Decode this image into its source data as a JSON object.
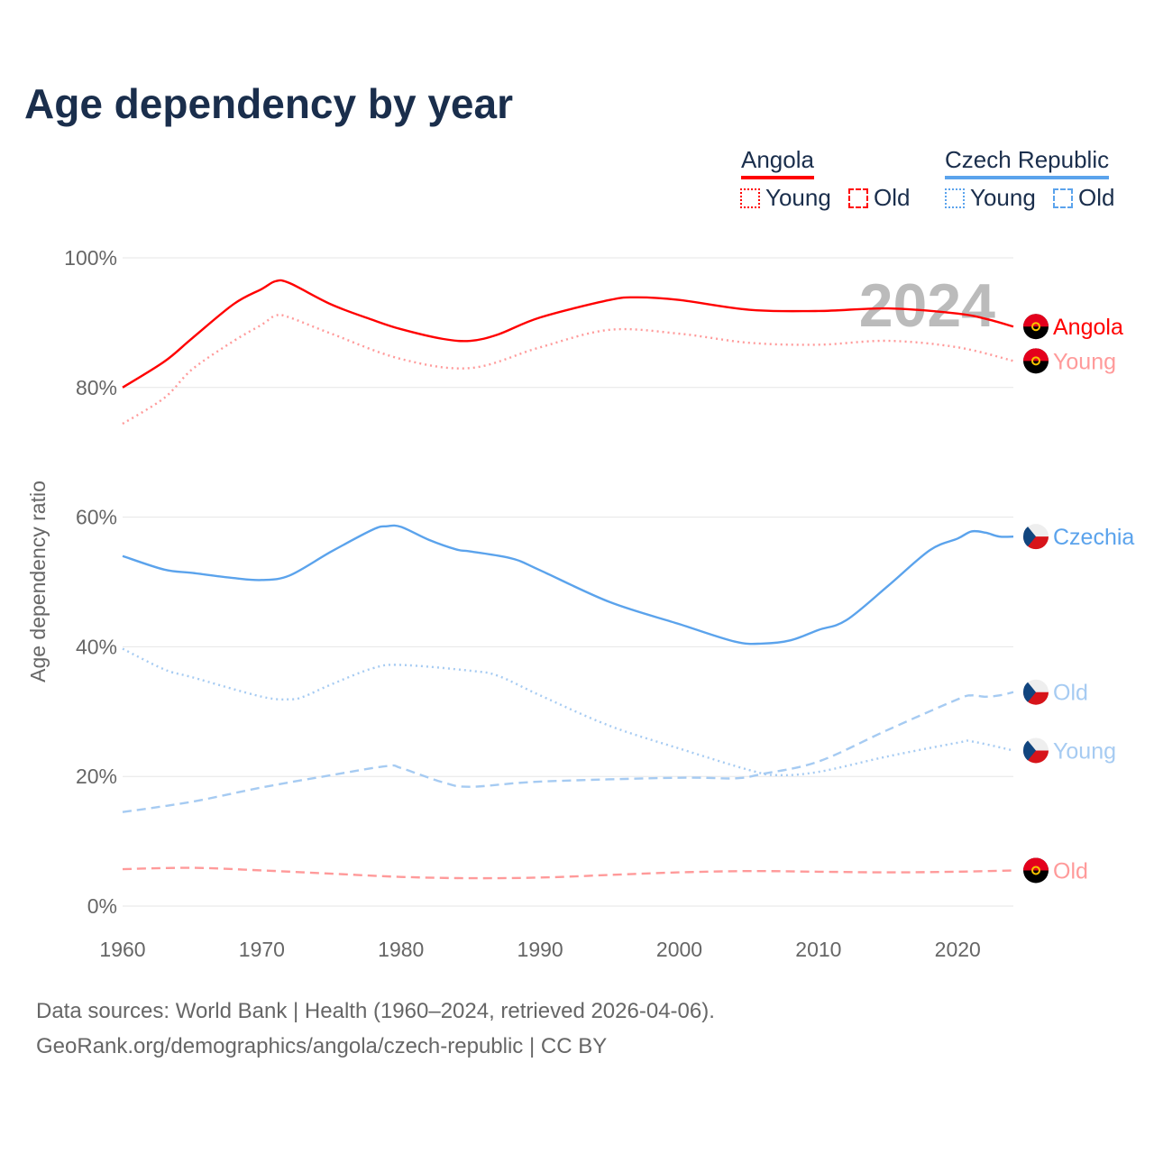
{
  "title": "Age dependency by year",
  "legend": {
    "groups": [
      {
        "name": "Angola",
        "color": "#ff0000",
        "items": [
          {
            "label": "Young",
            "style": "dotted"
          },
          {
            "label": "Old",
            "style": "dashed"
          }
        ]
      },
      {
        "name": "Czech Republic",
        "color": "#5ba3ec",
        "items": [
          {
            "label": "Young",
            "style": "dotted"
          },
          {
            "label": "Old",
            "style": "dashed"
          }
        ]
      }
    ]
  },
  "footer": {
    "line1": "Data sources: World Bank | Health (1960–2024, retrieved 2026-04-06).",
    "line2": "GeoRank.org/demographics/angola/czech-republic | CC BY"
  },
  "chart_data": {
    "type": "line",
    "title": "Age dependency by year",
    "ylabel": "Age dependency ratio",
    "xlabel": "",
    "xlim": [
      1960,
      2024
    ],
    "ylim": [
      0,
      100
    ],
    "x_ticks": [
      "1960",
      "1970",
      "1980",
      "1990",
      "2000",
      "2010",
      "2020"
    ],
    "y_ticks": [
      "0%",
      "20%",
      "40%",
      "60%",
      "80%",
      "100%"
    ],
    "year_watermark": "2024",
    "grid": true,
    "series": [
      {
        "name": "Angola",
        "end_label": "Angola",
        "flag": "angola",
        "color": "#ff0000",
        "dash": "solid",
        "points": [
          [
            1960,
            80
          ],
          [
            1963,
            84
          ],
          [
            1965,
            87.6
          ],
          [
            1968,
            92.9
          ],
          [
            1970,
            95.2
          ],
          [
            1971,
            96.4
          ],
          [
            1972,
            96.1
          ],
          [
            1975,
            92.8
          ],
          [
            1978,
            90.4
          ],
          [
            1980,
            89
          ],
          [
            1983,
            87.5
          ],
          [
            1985,
            87.2
          ],
          [
            1987,
            88.2
          ],
          [
            1990,
            90.8
          ],
          [
            1995,
            93.5
          ],
          [
            1997,
            93.9
          ],
          [
            2000,
            93.5
          ],
          [
            2005,
            92
          ],
          [
            2010,
            91.8
          ],
          [
            2015,
            92.2
          ],
          [
            2020,
            91.4
          ],
          [
            2022,
            90.6
          ],
          [
            2024,
            89.4
          ]
        ]
      },
      {
        "name": "Angola Young",
        "end_label": "Young",
        "flag": "angola",
        "color": "#ff9a9a",
        "dash": "dotted",
        "points": [
          [
            1960,
            74.4
          ],
          [
            1963,
            78.4
          ],
          [
            1965,
            82.8
          ],
          [
            1968,
            87.2
          ],
          [
            1970,
            89.7
          ],
          [
            1971,
            91.1
          ],
          [
            1972,
            90.8
          ],
          [
            1975,
            88.3
          ],
          [
            1980,
            84.4
          ],
          [
            1985,
            83
          ],
          [
            1990,
            86.2
          ],
          [
            1995,
            88.9
          ],
          [
            2000,
            88.3
          ],
          [
            2005,
            86.9
          ],
          [
            2010,
            86.6
          ],
          [
            2015,
            87.2
          ],
          [
            2020,
            86.2
          ],
          [
            2024,
            84.1
          ]
        ]
      },
      {
        "name": "Angola Old",
        "end_label": "Old",
        "flag": "angola",
        "color": "#ff9a9a",
        "dash": "dashed",
        "points": [
          [
            1960,
            5.7
          ],
          [
            1965,
            5.9
          ],
          [
            1970,
            5.5
          ],
          [
            1975,
            5
          ],
          [
            1980,
            4.5
          ],
          [
            1985,
            4.3
          ],
          [
            1990,
            4.4
          ],
          [
            1995,
            4.8
          ],
          [
            2000,
            5.2
          ],
          [
            2005,
            5.4
          ],
          [
            2010,
            5.3
          ],
          [
            2015,
            5.2
          ],
          [
            2020,
            5.3
          ],
          [
            2024,
            5.5
          ]
        ]
      },
      {
        "name": "Czechia",
        "end_label": "Czechia",
        "flag": "czechia",
        "color": "#5ba3ec",
        "dash": "solid",
        "points": [
          [
            1960,
            54
          ],
          [
            1963,
            51.9
          ],
          [
            1965,
            51.4
          ],
          [
            1968,
            50.6
          ],
          [
            1970,
            50.3
          ],
          [
            1972,
            51
          ],
          [
            1975,
            54.7
          ],
          [
            1978,
            58.1
          ],
          [
            1979,
            58.6
          ],
          [
            1980,
            58.5
          ],
          [
            1982,
            56.5
          ],
          [
            1984,
            55
          ],
          [
            1985,
            54.7
          ],
          [
            1988,
            53.6
          ],
          [
            1990,
            51.8
          ],
          [
            1995,
            46.9
          ],
          [
            2000,
            43.5
          ],
          [
            2004,
            40.8
          ],
          [
            2006,
            40.5
          ],
          [
            2008,
            41
          ],
          [
            2010,
            42.6
          ],
          [
            2012,
            44.1
          ],
          [
            2015,
            49.4
          ],
          [
            2018,
            54.9
          ],
          [
            2020,
            56.7
          ],
          [
            2021,
            57.8
          ],
          [
            2022,
            57.6
          ],
          [
            2023,
            57
          ],
          [
            2024,
            57
          ]
        ]
      },
      {
        "name": "Czechia Old",
        "end_label": "Old",
        "flag": "czechia",
        "color": "#a6cbf2",
        "dash": "dashed",
        "points": [
          [
            1960,
            14.5
          ],
          [
            1965,
            16.1
          ],
          [
            1970,
            18.3
          ],
          [
            1975,
            20.2
          ],
          [
            1979,
            21.6
          ],
          [
            1980,
            21.3
          ],
          [
            1983,
            19.1
          ],
          [
            1985,
            18.4
          ],
          [
            1990,
            19.2
          ],
          [
            2000,
            19.8
          ],
          [
            2004,
            19.7
          ],
          [
            2006,
            20.4
          ],
          [
            2010,
            22.3
          ],
          [
            2015,
            27.2
          ],
          [
            2020,
            31.9
          ],
          [
            2021,
            32.5
          ],
          [
            2022,
            32.3
          ],
          [
            2023,
            32.5
          ],
          [
            2024,
            33
          ]
        ]
      },
      {
        "name": "Czechia Young",
        "end_label": "Young",
        "flag": "czechia",
        "color": "#a6cbf2",
        "dash": "dotted",
        "points": [
          [
            1960,
            39.7
          ],
          [
            1963,
            36.5
          ],
          [
            1965,
            35.3
          ],
          [
            1970,
            32.3
          ],
          [
            1972,
            31.9
          ],
          [
            1973,
            32.3
          ],
          [
            1975,
            34.2
          ],
          [
            1978,
            36.7
          ],
          [
            1980,
            37.2
          ],
          [
            1985,
            36.3
          ],
          [
            1987,
            35.5
          ],
          [
            1990,
            32.5
          ],
          [
            1995,
            27.8
          ],
          [
            2000,
            24.3
          ],
          [
            2005,
            21
          ],
          [
            2007,
            20.2
          ],
          [
            2010,
            20.7
          ],
          [
            2015,
            23.1
          ],
          [
            2020,
            25.2
          ],
          [
            2021,
            25.4
          ],
          [
            2024,
            24
          ]
        ]
      }
    ]
  }
}
